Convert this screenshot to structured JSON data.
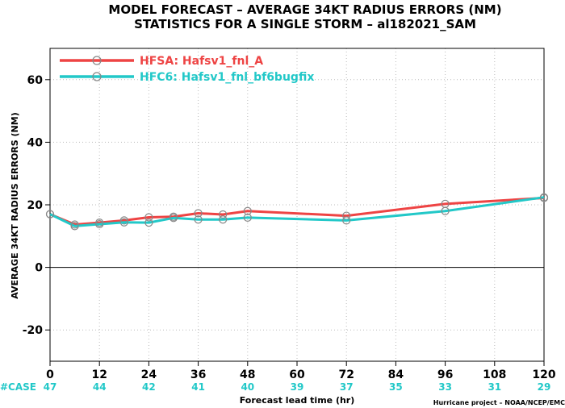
{
  "chart_data": {
    "type": "line",
    "title": "MODEL FORECAST – AVERAGE 34KT RADIUS ERRORS (NM)",
    "subtitle": "STATISTICS FOR A SINGLE STORM – al182021_SAM",
    "xlabel": "Forecast lead time (hr)",
    "ylabel": "AVERAGE 34KT RADIUS ERRORS (NM)",
    "xlim": [
      0,
      120
    ],
    "ylim": [
      -30,
      70
    ],
    "xticks": [
      0,
      12,
      24,
      36,
      48,
      60,
      72,
      84,
      96,
      108,
      120
    ],
    "yticks": [
      -20,
      0,
      20,
      40,
      60
    ],
    "grid": true,
    "zero_line": true,
    "legend_position": "top-left",
    "series": [
      {
        "name": "HFSA: Hafsv1_fnl_A",
        "color": "#ee4444",
        "x": [
          0,
          6,
          12,
          18,
          24,
          30,
          36,
          42,
          48,
          72,
          96,
          120
        ],
        "y": [
          17,
          13.7,
          14.3,
          15,
          16,
          16.2,
          17.3,
          16.9,
          18,
          16.5,
          20.3,
          22.2
        ]
      },
      {
        "name": "HFC6: Hafsv1_fnl_bf6bugfix",
        "color": "#22c8c8",
        "x": [
          0,
          6,
          12,
          18,
          24,
          30,
          36,
          42,
          48,
          72,
          96,
          120
        ],
        "y": [
          17,
          13.2,
          13.8,
          14.4,
          14.3,
          15.8,
          15.3,
          15.3,
          15.9,
          15,
          18,
          22.4
        ]
      }
    ],
    "case_counts": {
      "label": "#CASE",
      "color": "#22c8c8",
      "x": [
        0,
        12,
        24,
        36,
        48,
        60,
        72,
        84,
        96,
        108,
        120
      ],
      "values": [
        "47",
        "44",
        "42",
        "41",
        "40",
        "39",
        "37",
        "35",
        "33",
        "31",
        "29"
      ]
    },
    "footer": "Hurricane project – NOAA/NCEP/EMC"
  }
}
